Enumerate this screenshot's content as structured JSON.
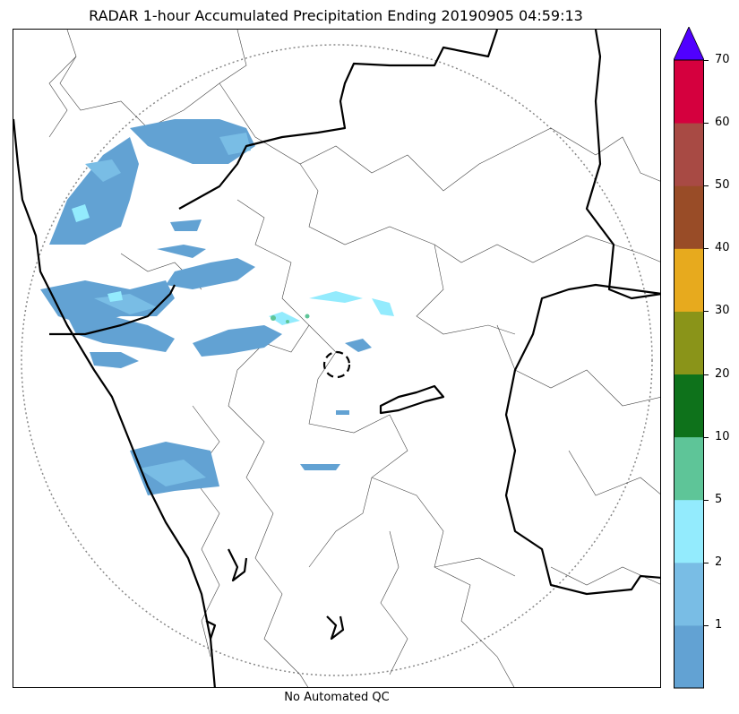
{
  "title": "RADAR 1-hour Accumulated Precipitation Ending 20190905 04:59:13",
  "footer": "No Automated QC",
  "colorbar": {
    "tick_labels": [
      "1",
      "2",
      "5",
      "10",
      "20",
      "30",
      "40",
      "50",
      "60",
      "70"
    ],
    "colors": [
      "#62a2d3",
      "#79bde5",
      "#93ebfd",
      "#5ec598",
      "#0e721b",
      "#8a9419",
      "#e7aa1e",
      "#994c27",
      "#a84a44",
      "#d5003e"
    ],
    "extend_color": "#5000ff"
  },
  "colors": {
    "precip_light": "#62a2d3",
    "precip_med": "#79bde5",
    "precip_cyan": "#93ebfd",
    "precip_green": "#5ec598"
  }
}
